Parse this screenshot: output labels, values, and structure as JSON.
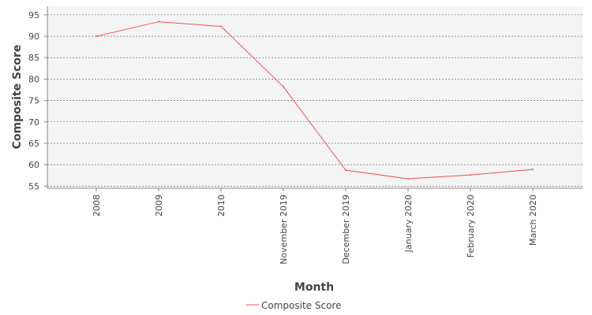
{
  "chart_data": {
    "type": "line",
    "title": "",
    "xlabel": "Month",
    "ylabel": "Composite Score",
    "categories": [
      "2008",
      "2009",
      "2010",
      "November 2019",
      "December 2019",
      "January 2020",
      "February 2020",
      "March 2020"
    ],
    "series": [
      {
        "name": "Composite Score",
        "color": "#f05050",
        "values": [
          90.0,
          93.4,
          92.3,
          78.2,
          58.7,
          56.7,
          57.6,
          58.9
        ]
      }
    ],
    "ylim": [
      54.5,
      97
    ],
    "yticks": [
      55,
      60,
      65,
      70,
      75,
      80,
      85,
      90,
      95
    ],
    "grid": true,
    "legend": "bottom-center"
  }
}
